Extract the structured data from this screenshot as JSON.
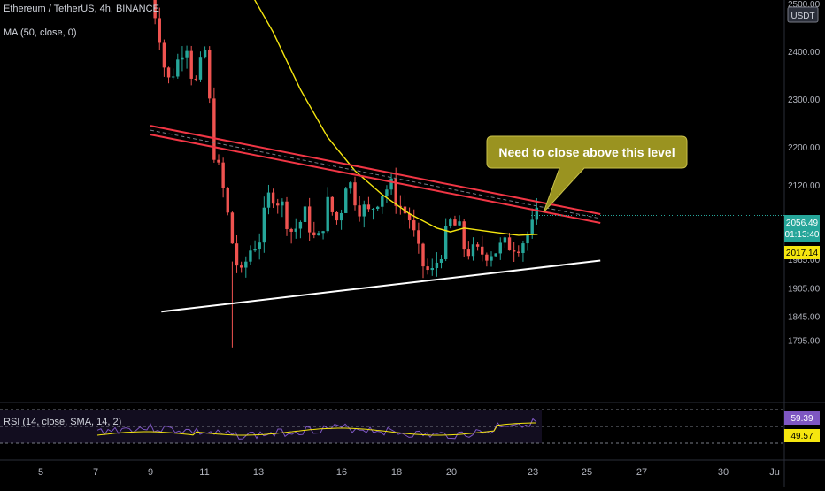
{
  "header": {
    "title": "Ethereum / TetherUS, 4h, BINANCE",
    "ma_label": "MA (50, close, 0)"
  },
  "currency_badge": "USDT",
  "price_badges": {
    "last_price": "2056.49",
    "countdown": "01:13:40",
    "ma_value": "2017.14",
    "last_color": "#26a69a",
    "ma_color": "#f5e60f"
  },
  "annotation": {
    "text": "Need to close above this level",
    "bg_color": "#9a9320"
  },
  "rsi": {
    "label": "RSI (14, close, SMA, 14, 2)",
    "rsi_value": "59.39",
    "ma_value": "49.57"
  },
  "chart_data": {
    "type": "candlestick",
    "symbol": "Ethereum / TetherUS",
    "timeframe": "4h",
    "exchange": "BINANCE",
    "y_ticks": [
      "2500.00",
      "2400.00",
      "2300.00",
      "2200.00",
      "2120.00",
      "1965.00",
      "1905.00",
      "1845.00",
      "1795.00"
    ],
    "x_ticks": [
      "5",
      "7",
      "9",
      "11",
      "13",
      "16",
      "18",
      "20",
      "23",
      "25",
      "27",
      "30",
      "Ju"
    ],
    "ma_period": 50,
    "levels": [
      {
        "name": "descending resistance",
        "color": "#f23645",
        "start": [
          "9",
          2235
        ],
        "end": [
          "25.5",
          2050
        ]
      },
      {
        "name": "ascending support",
        "color": "#ffffff",
        "start": [
          "9.4",
          1855
        ],
        "end": [
          "25.5",
          1962
        ]
      }
    ],
    "rsi_period": 14,
    "rsi_bands": [
      70,
      30
    ],
    "colors": {
      "up": "#26a69a",
      "down": "#ef5350",
      "ma": "#f5e60f",
      "rsi": "#7e57c2",
      "rsi_ma": "#f5e60f"
    }
  }
}
